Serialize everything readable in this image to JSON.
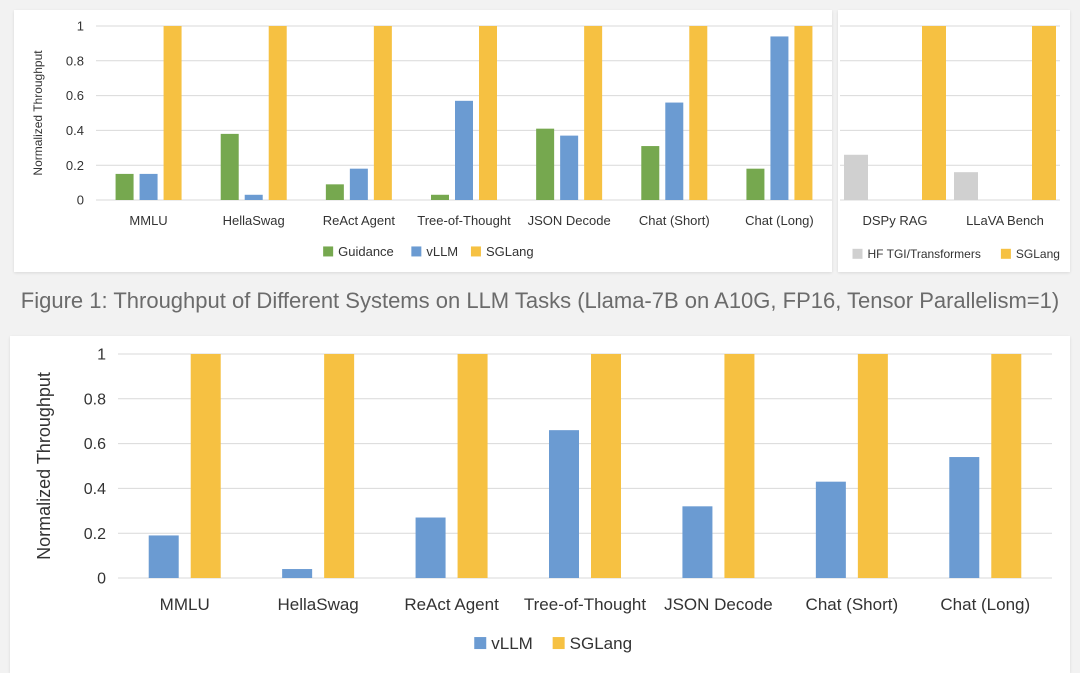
{
  "figure1_caption": "Figure 1: Throughput of Different Systems on LLM Tasks (Llama-7B on A10G, FP16, Tensor Parallelism=1)",
  "colors": {
    "Guidance": "#76a84f",
    "vLLM": "#6b9bd2",
    "SGLang": "#f6c142",
    "HF TGI/Transformers": "#d0d0d0"
  },
  "chart_data": [
    {
      "type": "bar",
      "ylabel": "Normalized Throughput",
      "ylim": [
        0,
        1
      ],
      "yticks": [
        "0",
        "0.2",
        "0.4",
        "0.6",
        "0.8",
        "1"
      ],
      "grid": true,
      "legend_position": "bottom",
      "categories": [
        "MMLU",
        "HellaSwag",
        "ReAct Agent",
        "Tree-of-Thought",
        "JSON Decode",
        "Chat (Short)",
        "Chat (Long)"
      ],
      "series": [
        {
          "name": "Guidance",
          "values": [
            0.15,
            0.38,
            0.09,
            0.03,
            0.41,
            0.31,
            0.18
          ]
        },
        {
          "name": "vLLM",
          "values": [
            0.15,
            0.03,
            0.18,
            0.57,
            0.37,
            0.56,
            0.94
          ]
        },
        {
          "name": "SGLang",
          "values": [
            1,
            1,
            1,
            1,
            1,
            1,
            1
          ]
        }
      ]
    },
    {
      "type": "bar",
      "ylim": [
        0,
        1
      ],
      "grid": true,
      "legend_position": "bottom",
      "categories": [
        "DSPy RAG",
        "LLaVA Bench"
      ],
      "series": [
        {
          "name": "HF TGI/Transformers",
          "values": [
            0.26,
            0.16
          ]
        },
        {
          "name": "SGLang",
          "values": [
            1,
            1
          ]
        }
      ]
    },
    {
      "type": "bar",
      "ylabel": "Normalized Throughput",
      "ylim": [
        0,
        1
      ],
      "yticks": [
        "0",
        "0.2",
        "0.4",
        "0.6",
        "0.8",
        "1"
      ],
      "grid": true,
      "legend_position": "bottom",
      "categories": [
        "MMLU",
        "HellaSwag",
        "ReAct Agent",
        "Tree-of-Thought",
        "JSON Decode",
        "Chat (Short)",
        "Chat (Long)"
      ],
      "series": [
        {
          "name": "vLLM",
          "values": [
            0.19,
            0.04,
            0.27,
            0.66,
            0.32,
            0.43,
            0.54
          ]
        },
        {
          "name": "SGLang",
          "values": [
            1,
            1,
            1,
            1,
            1,
            1,
            1
          ]
        }
      ]
    }
  ]
}
